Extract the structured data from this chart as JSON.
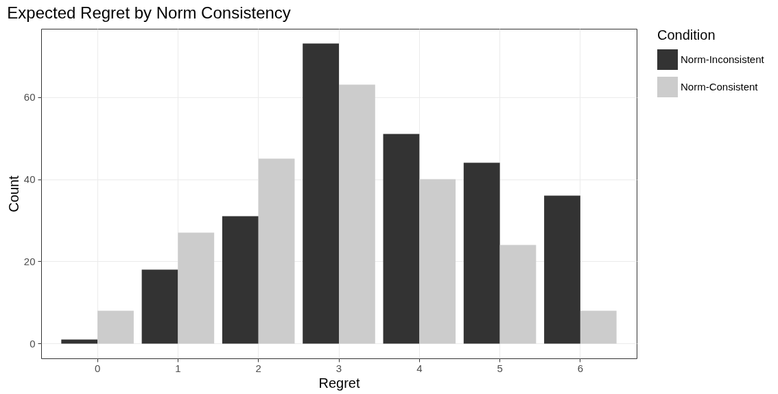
{
  "chart_data": {
    "type": "bar",
    "title": "Expected Regret by Norm Consistency",
    "xlabel": "Regret",
    "ylabel": "Count",
    "legend_title": "Condition",
    "categories": [
      "0",
      "1",
      "2",
      "3",
      "4",
      "5",
      "6"
    ],
    "series": [
      {
        "name": "Norm-Inconsistent",
        "color": "#333333",
        "values": [
          1,
          18,
          31,
          73,
          51,
          44,
          36
        ]
      },
      {
        "name": "Norm-Consistent",
        "color": "#cccccc",
        "values": [
          8,
          27,
          45,
          63,
          40,
          24,
          8
        ]
      }
    ],
    "ylim": [
      -3.6,
      76.6
    ],
    "yticks": [
      0,
      20,
      40,
      60
    ],
    "grid": true,
    "legend": "right"
  }
}
